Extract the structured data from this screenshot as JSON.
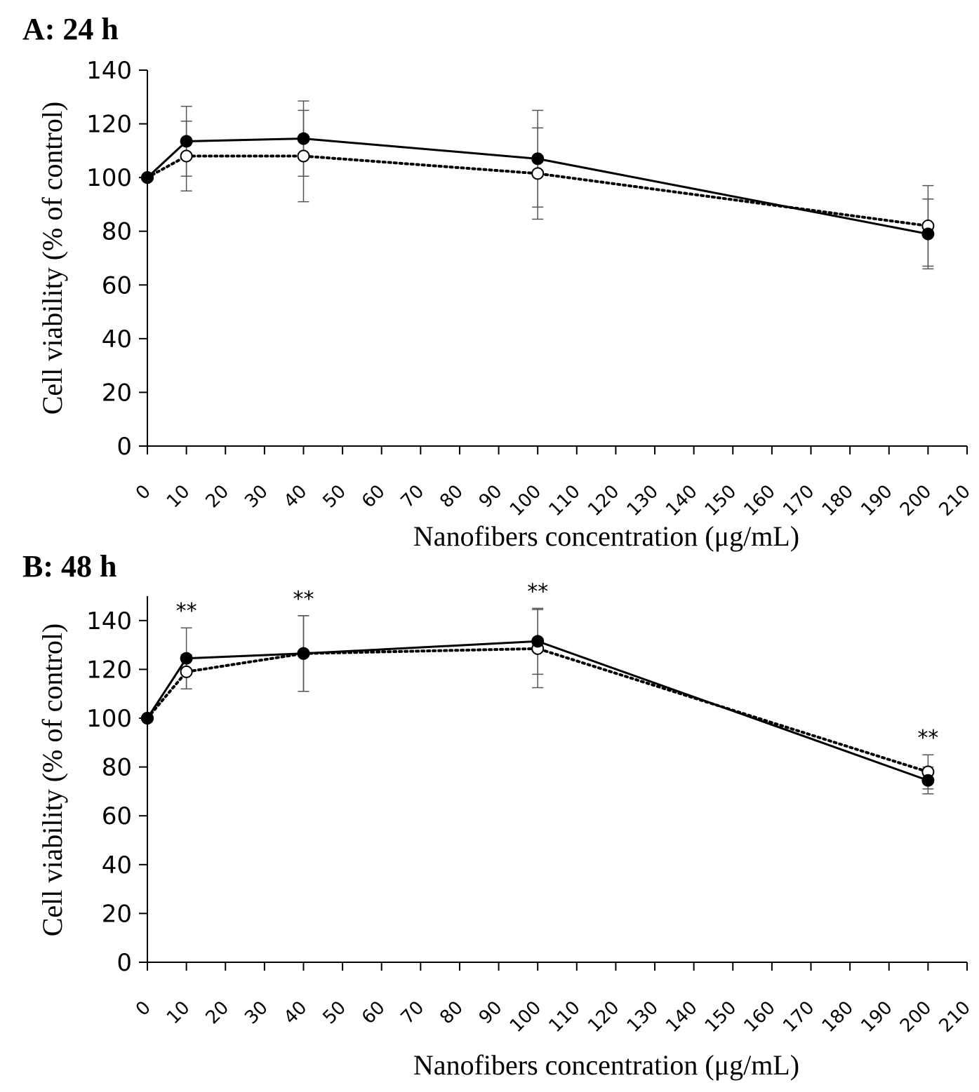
{
  "chart_data": [
    {
      "type": "line",
      "title": "A: 24 h",
      "xlabel": "Nanofibers concentration (μg/mL)",
      "ylabel": "Cell viability (% of control)",
      "xlim": [
        0,
        210
      ],
      "ylim": [
        0,
        140
      ],
      "x_ticks": [
        "0",
        "10",
        "20",
        "30",
        "40",
        "50",
        "60",
        "70",
        "80",
        "90",
        "100",
        "110",
        "120",
        "130",
        "140",
        "150",
        "160",
        "170",
        "180",
        "190",
        "200",
        "210"
      ],
      "y_ticks": [
        "0",
        "20",
        "40",
        "60",
        "80",
        "100",
        "120",
        "140"
      ],
      "x": [
        0,
        10,
        40,
        100,
        200
      ],
      "series": [
        {
          "style": "solid",
          "marker": "filled-circle",
          "values": [
            100,
            113.5,
            114.5,
            107,
            79
          ],
          "errors": [
            0,
            13,
            14,
            18,
            13
          ]
        },
        {
          "style": "dotted",
          "marker": "open-circle",
          "values": [
            100,
            108,
            108,
            101.5,
            82
          ],
          "errors": [
            0,
            13,
            17,
            17,
            15
          ]
        }
      ],
      "annotations": []
    },
    {
      "type": "line",
      "title": "B: 48 h",
      "xlabel": "Nanofibers concentration (μg/mL)",
      "ylabel": "Cell viability (% of control)",
      "xlim": [
        0,
        210
      ],
      "ylim": [
        0,
        150
      ],
      "x_ticks": [
        "0",
        "10",
        "20",
        "30",
        "40",
        "50",
        "60",
        "70",
        "80",
        "90",
        "100",
        "110",
        "120",
        "130",
        "140",
        "150",
        "160",
        "170",
        "180",
        "190",
        "200",
        "210"
      ],
      "y_ticks": [
        "0",
        "20",
        "40",
        "60",
        "80",
        "100",
        "120",
        "140"
      ],
      "x": [
        0,
        10,
        40,
        100,
        200
      ],
      "series": [
        {
          "style": "solid",
          "marker": "filled-circle",
          "values": [
            100,
            124.5,
            126.5,
            131.5,
            74.5
          ],
          "errors": [
            0,
            12.5,
            15.5,
            13.5,
            5.5
          ]
        },
        {
          "style": "dotted",
          "marker": "open-circle",
          "values": [
            100,
            119,
            126.5,
            128.5,
            78
          ],
          "errors": [
            0,
            7,
            15.5,
            16,
            7
          ]
        }
      ],
      "annotations": [
        {
          "x": 10,
          "text": "**"
        },
        {
          "x": 40,
          "text": "**"
        },
        {
          "x": 100,
          "text": "**"
        },
        {
          "x": 200,
          "text": "**"
        }
      ]
    }
  ]
}
